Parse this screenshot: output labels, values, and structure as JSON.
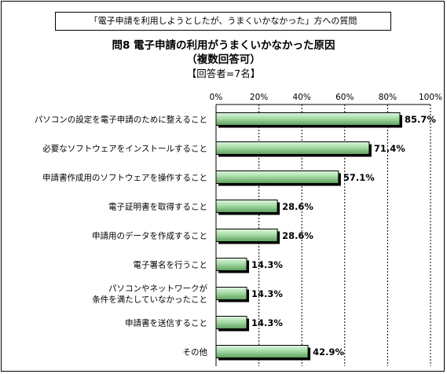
{
  "header": {
    "banner": "「電子申請を利用しようとしたが、うまくいかなかった」方への質問",
    "title": "問8  電子申請の利用がうまくいかなかった原因",
    "subtitle": "（複数回答可）",
    "respondents": "【回答者=7名】"
  },
  "chart_data": {
    "type": "bar",
    "orientation": "horizontal",
    "categories": [
      "パソコンの設定を電子申請のために整えること",
      "必要なソフトウェアをインストールすること",
      "申請書作成用のソフトウェアを操作すること",
      "電子証明書を取得すること",
      "申請用のデータを作成すること",
      "電子署名を行うこと",
      "パソコンやネットワークが\n条件を満たしていなかったこと",
      "申請書を送信すること",
      "その他"
    ],
    "values": [
      85.7,
      71.4,
      57.1,
      28.6,
      28.6,
      14.3,
      14.3,
      14.3,
      42.9
    ],
    "value_labels": [
      "85.7%",
      "71.4%",
      "57.1%",
      "28.6%",
      "28.6%",
      "14.3%",
      "14.3%",
      "14.3%",
      "42.9%"
    ],
    "ticks": [
      "0%",
      "20%",
      "40%",
      "60%",
      "80%",
      "100%"
    ],
    "xlim": [
      0,
      100
    ],
    "grid": true,
    "legend": "none"
  },
  "colors": {
    "bar_light": "#e2f5e2",
    "bar_mid": "#a6dca6",
    "bar_dark": "#5e9e5e",
    "shadow": "#000000",
    "grid": "#000000"
  }
}
